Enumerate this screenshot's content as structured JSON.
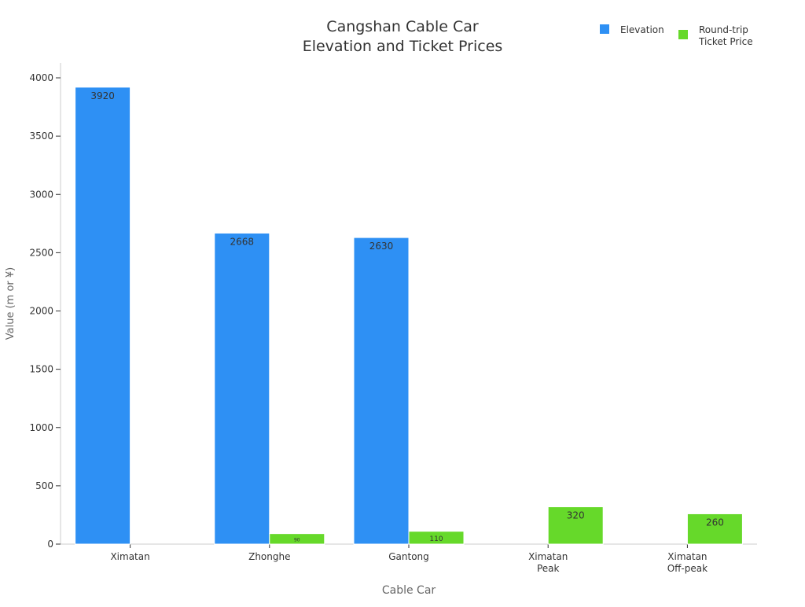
{
  "chart_data": {
    "type": "bar",
    "title": [
      "Cangshan Cable Car",
      "Elevation and Ticket Prices"
    ],
    "xlabel": "Cable Car",
    "ylabel": "Value (m or ¥)",
    "categories": [
      [
        "Ximatan"
      ],
      [
        "Zhonghe"
      ],
      [
        "Gantong"
      ],
      [
        "Ximatan",
        "Peak"
      ],
      [
        "Ximatan",
        "Off-peak"
      ]
    ],
    "series": [
      {
        "name": "Elevation",
        "color": "#2e90f4",
        "values": [
          3920,
          2668,
          2630,
          null,
          null
        ]
      },
      {
        "name": [
          "Round-trip",
          "Ticket Price"
        ],
        "color": "#66d92a",
        "values": [
          null,
          90,
          110,
          320,
          260
        ]
      }
    ],
    "ylim": [
      0,
      4000
    ],
    "yticks": [
      0,
      500,
      1000,
      1500,
      2000,
      2500,
      3000,
      3500,
      4000
    ],
    "grid": false,
    "legend_position": "top-right",
    "data_labels": true
  }
}
